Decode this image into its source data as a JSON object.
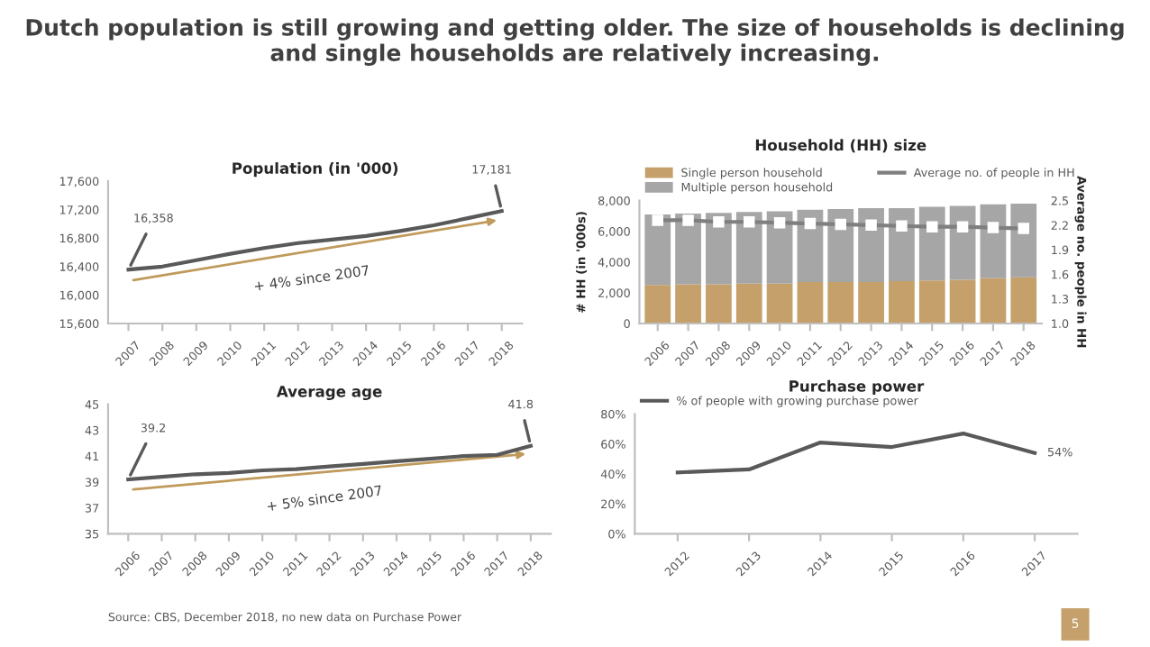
{
  "chart_data": [
    {
      "type": "other",
      "title": "Dutch population is still growing and getting older. The size of households is declining and single households are relatively increasing.",
      "annotations": [
        "Source: CBS, December 2018, no new data on Purchase Power",
        "5"
      ]
    },
    {
      "type": "line",
      "title": "Population (in '000)",
      "categories": [
        "2007",
        "2008",
        "2009",
        "2010",
        "2011",
        "2012",
        "2013",
        "2014",
        "2015",
        "2016",
        "2017",
        "2018"
      ],
      "series": [
        {
          "color": "#595959",
          "values": [
            16358,
            16400,
            16490,
            16580,
            16660,
            16730,
            16780,
            16830,
            16900,
            16980,
            17080,
            17181
          ]
        }
      ],
      "ylim": [
        15600,
        17600
      ],
      "yticks": [
        {
          "value": 15600,
          "label": "15,600"
        },
        {
          "value": 16000,
          "label": "16,000"
        },
        {
          "value": 16400,
          "label": "16,400"
        },
        {
          "value": 16800,
          "label": "16,800"
        },
        {
          "value": 17200,
          "label": "17,200"
        },
        {
          "value": 17600,
          "label": "17,600"
        }
      ],
      "annotations": [
        {
          "text": "16,358",
          "x": "2007",
          "y": 16358
        },
        {
          "text": "17,181",
          "x": "2018",
          "y": 17181
        },
        "+ 4% since 2007"
      ],
      "grid": false,
      "marker": "none"
    },
    {
      "type": "bar",
      "stacked": true,
      "title": "Household (HH) size",
      "ylabel": "# HH (in '000s)",
      "y2label": "Average no. people in HH",
      "categories": [
        "2006",
        "2007",
        "2008",
        "2009",
        "2010",
        "2011",
        "2012",
        "2013",
        "2014",
        "2015",
        "2016",
        "2017",
        "2018"
      ],
      "series": [
        {
          "name": "Single person household",
          "color": "#c5a06a",
          "values": [
            2500,
            2550,
            2550,
            2600,
            2600,
            2700,
            2700,
            2700,
            2750,
            2800,
            2850,
            2950,
            3000
          ]
        },
        {
          "name": "Multiple person household",
          "color": "#a6a6a6",
          "values": [
            4600,
            4600,
            4650,
            4650,
            4700,
            4700,
            4750,
            4800,
            4750,
            4800,
            4800,
            4800,
            4800
          ]
        },
        {
          "name": "Average no. of people in HH",
          "type": "line",
          "axis": "y2",
          "color": "#7f7f7f",
          "marker": "square",
          "line_style": "solid",
          "values": [
            2.26,
            2.26,
            2.24,
            2.24,
            2.23,
            2.22,
            2.21,
            2.2,
            2.19,
            2.18,
            2.18,
            2.17,
            2.16
          ]
        }
      ],
      "ylim": [
        0,
        8000
      ],
      "yticks": [
        {
          "value": 0,
          "label": "0"
        },
        {
          "value": 2000,
          "label": "2,000"
        },
        {
          "value": 4000,
          "label": "4,000"
        },
        {
          "value": 6000,
          "label": "6,000"
        },
        {
          "value": 8000,
          "label": "8,000"
        }
      ],
      "y2lim": [
        1.0,
        2.5
      ],
      "y2ticks": [
        {
          "value": 1.0,
          "label": "1.0"
        },
        {
          "value": 1.3,
          "label": "1.3"
        },
        {
          "value": 1.6,
          "label": "1.6"
        },
        {
          "value": 1.9,
          "label": "1.9"
        },
        {
          "value": 2.2,
          "label": "2.2"
        },
        {
          "value": 2.5,
          "label": "2.5"
        }
      ],
      "legend": "top",
      "grid": false
    },
    {
      "type": "line",
      "title": "Average age",
      "categories": [
        "2006",
        "2007",
        "2008",
        "2009",
        "2010",
        "2011",
        "2012",
        "2013",
        "2014",
        "2015",
        "2016",
        "2017",
        "2018"
      ],
      "series": [
        {
          "color": "#595959",
          "values": [
            39.2,
            39.4,
            39.6,
            39.7,
            39.9,
            40.0,
            40.2,
            40.4,
            40.6,
            40.8,
            41.0,
            41.1,
            41.8
          ]
        }
      ],
      "ylim": [
        35,
        45
      ],
      "yticks": [
        35,
        37,
        39,
        41,
        43,
        45
      ],
      "annotations": [
        {
          "text": "39.2",
          "x": "2006",
          "y": 39.2
        },
        {
          "text": "41.8",
          "x": "2018",
          "y": 41.8
        },
        "+ 5% since 2007"
      ],
      "grid": false,
      "marker": "none"
    },
    {
      "type": "line",
      "title": "Purchase power",
      "categories": [
        "2012",
        "2013",
        "2014",
        "2015",
        "2016",
        "2017"
      ],
      "series": [
        {
          "name": "% of people with growing purchase power",
          "color": "#595959",
          "values": [
            41,
            43,
            61,
            58,
            67,
            54
          ],
          "value_labels": [
            null,
            null,
            null,
            null,
            null,
            "54%"
          ]
        }
      ],
      "ylim": [
        0,
        80
      ],
      "yticks": [
        {
          "value": 0,
          "label": "0%"
        },
        {
          "value": 20,
          "label": "20%"
        },
        {
          "value": 40,
          "label": "40%"
        },
        {
          "value": 60,
          "label": "60%"
        },
        {
          "value": 80,
          "label": "80%"
        }
      ],
      "legend": "top",
      "grid": false,
      "marker": "none"
    }
  ]
}
